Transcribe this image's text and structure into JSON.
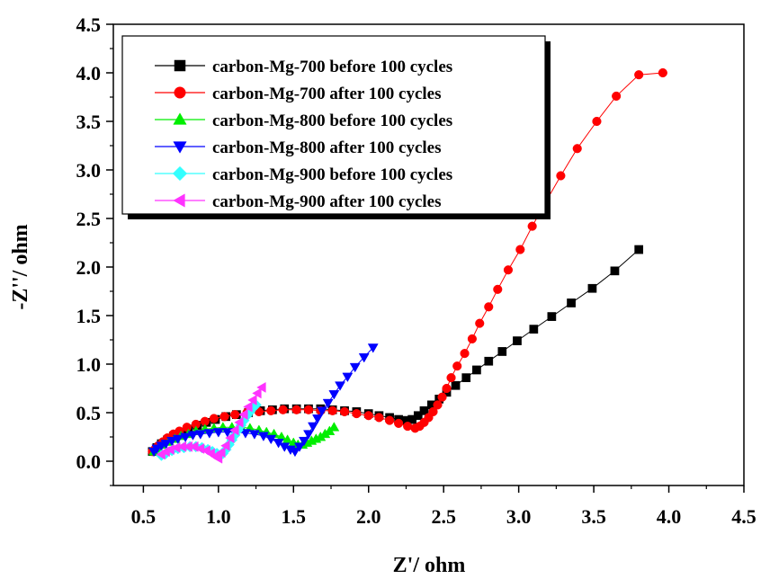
{
  "chart_data": {
    "type": "scatter",
    "xlabel": "Z'/ ohm",
    "ylabel": "-Z''/ ohm",
    "xlim": [
      0.3,
      4.5
    ],
    "ylim": [
      -0.25,
      4.5
    ],
    "x_ticks": [
      0.5,
      1.0,
      1.5,
      2.0,
      2.5,
      3.0,
      3.5,
      4.0,
      4.5
    ],
    "x_tick_labels": [
      "0.5",
      "1.0",
      "1.5",
      "2.0",
      "2.5",
      "3.0",
      "3.5",
      "4.0",
      "4.5"
    ],
    "y_ticks": [
      0.0,
      0.5,
      1.0,
      1.5,
      2.0,
      2.5,
      3.0,
      3.5,
      4.0,
      4.5
    ],
    "y_tick_labels": [
      "0.0",
      "0.5",
      "1.0",
      "1.5",
      "2.0",
      "2.5",
      "3.0",
      "3.5",
      "4.0",
      "4.5"
    ],
    "grid": false,
    "legend_position": "top-left",
    "series": [
      {
        "name": "carbon-Mg-700 before 100 cycles",
        "color": "#000000",
        "marker": "square",
        "x": [
          0.56,
          0.59,
          0.62,
          0.66,
          0.7,
          0.75,
          0.8,
          0.86,
          0.92,
          0.98,
          1.05,
          1.12,
          1.2,
          1.28,
          1.36,
          1.44,
          1.52,
          1.6,
          1.68,
          1.76,
          1.84,
          1.92,
          2.0,
          2.07,
          2.14,
          2.2,
          2.25,
          2.29,
          2.33,
          2.37,
          2.42,
          2.47,
          2.52,
          2.58,
          2.65,
          2.72,
          2.8,
          2.89,
          2.99,
          3.1,
          3.22,
          3.35,
          3.49,
          3.64,
          3.8
        ],
        "y": [
          0.1,
          0.14,
          0.18,
          0.22,
          0.26,
          0.3,
          0.33,
          0.37,
          0.4,
          0.43,
          0.46,
          0.48,
          0.5,
          0.52,
          0.53,
          0.54,
          0.54,
          0.54,
          0.54,
          0.53,
          0.52,
          0.51,
          0.49,
          0.47,
          0.45,
          0.43,
          0.42,
          0.43,
          0.47,
          0.52,
          0.58,
          0.64,
          0.71,
          0.78,
          0.86,
          0.94,
          1.03,
          1.13,
          1.24,
          1.36,
          1.49,
          1.63,
          1.78,
          1.96,
          2.18
        ]
      },
      {
        "name": "carbon-Mg-700 after 100 cycles",
        "color": "#ff0000",
        "marker": "circle",
        "x": [
          0.56,
          0.58,
          0.6,
          0.63,
          0.66,
          0.7,
          0.74,
          0.79,
          0.85,
          0.91,
          0.97,
          1.04,
          1.11,
          1.19,
          1.27,
          1.35,
          1.43,
          1.52,
          1.6,
          1.68,
          1.76,
          1.84,
          1.92,
          2.0,
          2.07,
          2.14,
          2.2,
          2.26,
          2.31,
          2.34,
          2.37,
          2.4,
          2.43,
          2.46,
          2.49,
          2.52,
          2.55,
          2.59,
          2.64,
          2.69,
          2.74,
          2.8,
          2.86,
          2.93,
          3.01,
          3.09,
          3.18,
          3.28,
          3.39,
          3.52,
          3.65,
          3.8,
          3.96
        ],
        "y": [
          0.1,
          0.13,
          0.16,
          0.2,
          0.24,
          0.28,
          0.31,
          0.35,
          0.38,
          0.41,
          0.44,
          0.46,
          0.48,
          0.5,
          0.51,
          0.52,
          0.53,
          0.53,
          0.53,
          0.52,
          0.52,
          0.51,
          0.49,
          0.47,
          0.45,
          0.42,
          0.39,
          0.36,
          0.34,
          0.36,
          0.4,
          0.45,
          0.51,
          0.58,
          0.66,
          0.75,
          0.86,
          0.98,
          1.11,
          1.26,
          1.42,
          1.59,
          1.77,
          1.97,
          2.18,
          2.42,
          2.67,
          2.94,
          3.22,
          3.5,
          3.76,
          3.98,
          4.0
        ]
      },
      {
        "name": "carbon-Mg-800 before 100 cycles",
        "color": "#00ee00",
        "marker": "triangle-up",
        "x": [
          0.57,
          0.6,
          0.63,
          0.67,
          0.71,
          0.75,
          0.8,
          0.85,
          0.91,
          0.97,
          1.03,
          1.09,
          1.15,
          1.21,
          1.27,
          1.32,
          1.37,
          1.42,
          1.46,
          1.5,
          1.53,
          1.56,
          1.59,
          1.62,
          1.65,
          1.68,
          1.71,
          1.74,
          1.77
        ],
        "y": [
          0.1,
          0.13,
          0.17,
          0.2,
          0.23,
          0.26,
          0.28,
          0.31,
          0.33,
          0.34,
          0.35,
          0.35,
          0.35,
          0.34,
          0.32,
          0.3,
          0.28,
          0.25,
          0.22,
          0.19,
          0.17,
          0.17,
          0.19,
          0.21,
          0.23,
          0.25,
          0.28,
          0.31,
          0.35
        ]
      },
      {
        "name": "carbon-Mg-800 after 100 cycles",
        "color": "#0000ff",
        "marker": "triangle-down",
        "x": [
          0.57,
          0.59,
          0.62,
          0.65,
          0.69,
          0.73,
          0.78,
          0.83,
          0.88,
          0.94,
          1.0,
          1.06,
          1.12,
          1.18,
          1.24,
          1.3,
          1.35,
          1.4,
          1.44,
          1.48,
          1.51,
          1.54,
          1.57,
          1.6,
          1.63,
          1.66,
          1.69,
          1.73,
          1.77,
          1.81,
          1.86,
          1.91,
          1.97,
          2.03
        ],
        "y": [
          0.1,
          0.13,
          0.16,
          0.18,
          0.21,
          0.23,
          0.25,
          0.27,
          0.28,
          0.29,
          0.3,
          0.3,
          0.3,
          0.29,
          0.28,
          0.26,
          0.23,
          0.19,
          0.15,
          0.12,
          0.1,
          0.15,
          0.21,
          0.28,
          0.36,
          0.44,
          0.52,
          0.6,
          0.69,
          0.78,
          0.87,
          0.97,
          1.07,
          1.17
        ]
      },
      {
        "name": "carbon-Mg-900 before 100 cycles",
        "color": "#33ffff",
        "marker": "diamond",
        "x": [
          0.62,
          0.65,
          0.69,
          0.73,
          0.77,
          0.81,
          0.85,
          0.89,
          0.93,
          0.96,
          0.99,
          1.01,
          1.03,
          1.05,
          1.07,
          1.09,
          1.11,
          1.13,
          1.15,
          1.17,
          1.19,
          1.21,
          1.23,
          1.25
        ],
        "y": [
          0.06,
          0.08,
          0.11,
          0.13,
          0.14,
          0.15,
          0.15,
          0.14,
          0.12,
          0.1,
          0.08,
          0.06,
          0.08,
          0.12,
          0.17,
          0.22,
          0.27,
          0.32,
          0.37,
          0.42,
          0.47,
          0.51,
          0.55,
          0.58
        ]
      },
      {
        "name": "carbon-Mg-900 after 100 cycles",
        "color": "#ff33ff",
        "marker": "triangle-left",
        "x": [
          0.62,
          0.65,
          0.68,
          0.72,
          0.76,
          0.8,
          0.84,
          0.88,
          0.92,
          0.95,
          0.98,
          1.0,
          1.02,
          1.05,
          1.08,
          1.11,
          1.14,
          1.17,
          1.2,
          1.23,
          1.26,
          1.29
        ],
        "y": [
          0.07,
          0.1,
          0.12,
          0.14,
          0.15,
          0.15,
          0.15,
          0.13,
          0.11,
          0.08,
          0.05,
          0.03,
          0.09,
          0.16,
          0.24,
          0.32,
          0.4,
          0.48,
          0.56,
          0.63,
          0.7,
          0.76
        ]
      }
    ]
  }
}
